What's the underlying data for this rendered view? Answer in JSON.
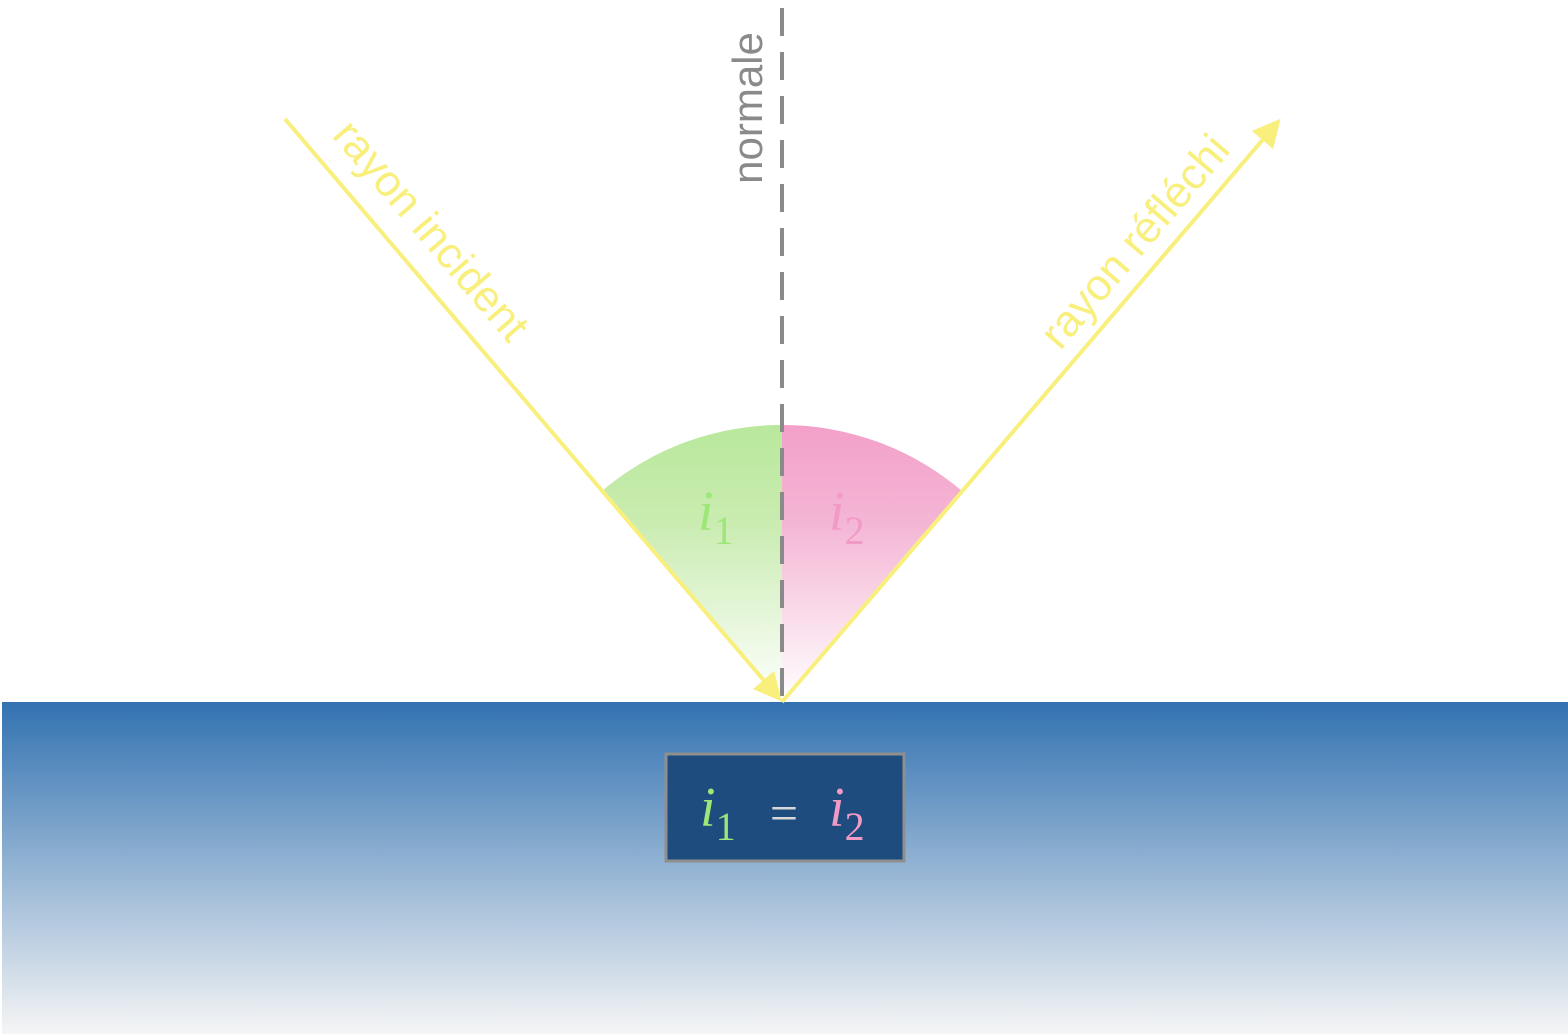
{
  "labels": {
    "normal": "normale",
    "incident_ray": "rayon incident",
    "reflected_ray": "rayon réfléchi"
  },
  "angles": {
    "incidence": {
      "letter": "i",
      "index": "1"
    },
    "reflection": {
      "letter": "i",
      "index": "2"
    }
  },
  "law": {
    "left_letter": "i",
    "left_index": "1",
    "operator": "=",
    "right_letter": "i",
    "right_index": "2"
  },
  "colors": {
    "ray": "#f8ef7c",
    "normal": "#8a8a8a",
    "incidence": "#9de678",
    "reflection": "#f29ac6",
    "surface_top": "#3272b1",
    "surface_bottom": "#f5f5f5",
    "law_box": "#1f4c7e",
    "law_border": "#8f8f8f",
    "operator": "#d8d8d8"
  }
}
